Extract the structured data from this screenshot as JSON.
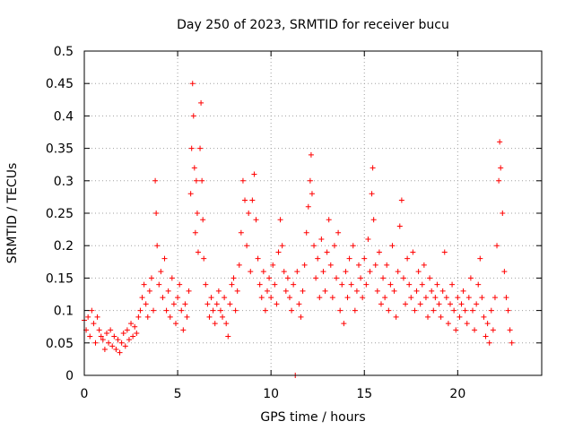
{
  "chart_data": {
    "type": "scatter",
    "title": "Day 250 of 2023, SRMTID for receiver bucu",
    "xlabel": "GPS time / hours",
    "ylabel": "SRMTID / TECUs",
    "xlim": [
      0,
      24.5
    ],
    "ylim": [
      0,
      0.5
    ],
    "x_ticks": [
      0,
      5,
      10,
      15,
      20
    ],
    "y_ticks": [
      0,
      0.05,
      0.1,
      0.15,
      0.2,
      0.25,
      0.3,
      0.35,
      0.4,
      0.45,
      0.5
    ],
    "x_tick_labels": [
      "0",
      "5",
      "10",
      "15",
      "20"
    ],
    "y_tick_labels": [
      "0",
      "0.05",
      "0.1",
      "0.15",
      "0.2",
      "0.25",
      "0.3",
      "0.35",
      "0.4",
      "0.45",
      "0.5"
    ],
    "grid": true,
    "marker": "+",
    "color": "#ff0000",
    "series": [
      {
        "name": "SRMTID",
        "points": [
          [
            0.0,
            0.085
          ],
          [
            0.1,
            0.07
          ],
          [
            0.2,
            0.09
          ],
          [
            0.3,
            0.06
          ],
          [
            0.4,
            0.1
          ],
          [
            0.5,
            0.08
          ],
          [
            0.6,
            0.05
          ],
          [
            0.7,
            0.09
          ],
          [
            0.8,
            0.07
          ],
          [
            0.9,
            0.06
          ],
          [
            1.0,
            0.055
          ],
          [
            1.1,
            0.04
          ],
          [
            1.2,
            0.065
          ],
          [
            1.3,
            0.05
          ],
          [
            1.4,
            0.07
          ],
          [
            1.5,
            0.045
          ],
          [
            1.6,
            0.06
          ],
          [
            1.7,
            0.04
          ],
          [
            1.8,
            0.055
          ],
          [
            1.9,
            0.035
          ],
          [
            2.0,
            0.05
          ],
          [
            2.1,
            0.065
          ],
          [
            2.2,
            0.045
          ],
          [
            2.3,
            0.07
          ],
          [
            2.4,
            0.055
          ],
          [
            2.5,
            0.08
          ],
          [
            2.6,
            0.06
          ],
          [
            2.7,
            0.075
          ],
          [
            2.8,
            0.065
          ],
          [
            2.9,
            0.09
          ],
          [
            3.0,
            0.1
          ],
          [
            3.1,
            0.12
          ],
          [
            3.2,
            0.14
          ],
          [
            3.3,
            0.11
          ],
          [
            3.4,
            0.09
          ],
          [
            3.5,
            0.13
          ],
          [
            3.6,
            0.15
          ],
          [
            3.7,
            0.1
          ],
          [
            3.8,
            0.3
          ],
          [
            3.85,
            0.25
          ],
          [
            3.9,
            0.2
          ],
          [
            4.0,
            0.14
          ],
          [
            4.1,
            0.16
          ],
          [
            4.2,
            0.12
          ],
          [
            4.3,
            0.18
          ],
          [
            4.4,
            0.1
          ],
          [
            4.5,
            0.13
          ],
          [
            4.6,
            0.09
          ],
          [
            4.7,
            0.15
          ],
          [
            4.8,
            0.11
          ],
          [
            4.9,
            0.08
          ],
          [
            5.0,
            0.12
          ],
          [
            5.1,
            0.14
          ],
          [
            5.2,
            0.1
          ],
          [
            5.3,
            0.07
          ],
          [
            5.4,
            0.11
          ],
          [
            5.5,
            0.09
          ],
          [
            5.6,
            0.13
          ],
          [
            5.7,
            0.28
          ],
          [
            5.75,
            0.35
          ],
          [
            5.8,
            0.45
          ],
          [
            5.85,
            0.4
          ],
          [
            5.9,
            0.32
          ],
          [
            5.95,
            0.22
          ],
          [
            6.0,
            0.3
          ],
          [
            6.05,
            0.25
          ],
          [
            6.1,
            0.19
          ],
          [
            6.2,
            0.35
          ],
          [
            6.25,
            0.42
          ],
          [
            6.3,
            0.3
          ],
          [
            6.35,
            0.24
          ],
          [
            6.4,
            0.18
          ],
          [
            6.5,
            0.14
          ],
          [
            6.6,
            0.11
          ],
          [
            6.7,
            0.09
          ],
          [
            6.8,
            0.12
          ],
          [
            6.9,
            0.1
          ],
          [
            7.0,
            0.08
          ],
          [
            7.1,
            0.11
          ],
          [
            7.2,
            0.13
          ],
          [
            7.3,
            0.1
          ],
          [
            7.4,
            0.09
          ],
          [
            7.5,
            0.12
          ],
          [
            7.6,
            0.08
          ],
          [
            7.7,
            0.06
          ],
          [
            7.8,
            0.11
          ],
          [
            7.9,
            0.14
          ],
          [
            8.0,
            0.15
          ],
          [
            8.1,
            0.1
          ],
          [
            8.2,
            0.13
          ],
          [
            8.3,
            0.17
          ],
          [
            8.4,
            0.22
          ],
          [
            8.5,
            0.3
          ],
          [
            8.6,
            0.27
          ],
          [
            8.7,
            0.2
          ],
          [
            8.8,
            0.25
          ],
          [
            8.9,
            0.16
          ],
          [
            9.0,
            0.27
          ],
          [
            9.1,
            0.31
          ],
          [
            9.2,
            0.24
          ],
          [
            9.3,
            0.18
          ],
          [
            9.4,
            0.14
          ],
          [
            9.5,
            0.12
          ],
          [
            9.6,
            0.16
          ],
          [
            9.7,
            0.1
          ],
          [
            9.8,
            0.13
          ],
          [
            9.9,
            0.15
          ],
          [
            10.0,
            0.12
          ],
          [
            10.1,
            0.17
          ],
          [
            10.2,
            0.14
          ],
          [
            10.3,
            0.11
          ],
          [
            10.4,
            0.19
          ],
          [
            10.5,
            0.24
          ],
          [
            10.6,
            0.2
          ],
          [
            10.7,
            0.16
          ],
          [
            10.8,
            0.13
          ],
          [
            10.9,
            0.15
          ],
          [
            11.0,
            0.12
          ],
          [
            11.1,
            0.1
          ],
          [
            11.2,
            0.14
          ],
          [
            11.3,
            0.0
          ],
          [
            11.4,
            0.16
          ],
          [
            11.5,
            0.11
          ],
          [
            11.6,
            0.09
          ],
          [
            11.7,
            0.13
          ],
          [
            11.8,
            0.17
          ],
          [
            11.9,
            0.22
          ],
          [
            12.0,
            0.26
          ],
          [
            12.1,
            0.3
          ],
          [
            12.15,
            0.34
          ],
          [
            12.2,
            0.28
          ],
          [
            12.3,
            0.2
          ],
          [
            12.4,
            0.15
          ],
          [
            12.5,
            0.18
          ],
          [
            12.6,
            0.12
          ],
          [
            12.7,
            0.21
          ],
          [
            12.8,
            0.16
          ],
          [
            12.9,
            0.13
          ],
          [
            13.0,
            0.19
          ],
          [
            13.1,
            0.24
          ],
          [
            13.2,
            0.17
          ],
          [
            13.3,
            0.12
          ],
          [
            13.4,
            0.2
          ],
          [
            13.5,
            0.15
          ],
          [
            13.6,
            0.22
          ],
          [
            13.7,
            0.1
          ],
          [
            13.8,
            0.14
          ],
          [
            13.9,
            0.08
          ],
          [
            14.0,
            0.16
          ],
          [
            14.1,
            0.12
          ],
          [
            14.2,
            0.18
          ],
          [
            14.3,
            0.14
          ],
          [
            14.4,
            0.2
          ],
          [
            14.5,
            0.1
          ],
          [
            14.6,
            0.13
          ],
          [
            14.7,
            0.17
          ],
          [
            14.8,
            0.15
          ],
          [
            14.9,
            0.12
          ],
          [
            15.0,
            0.18
          ],
          [
            15.1,
            0.14
          ],
          [
            15.2,
            0.21
          ],
          [
            15.3,
            0.16
          ],
          [
            15.4,
            0.28
          ],
          [
            15.45,
            0.32
          ],
          [
            15.5,
            0.24
          ],
          [
            15.6,
            0.17
          ],
          [
            15.7,
            0.13
          ],
          [
            15.8,
            0.19
          ],
          [
            15.9,
            0.11
          ],
          [
            16.0,
            0.15
          ],
          [
            16.1,
            0.12
          ],
          [
            16.2,
            0.17
          ],
          [
            16.3,
            0.1
          ],
          [
            16.4,
            0.14
          ],
          [
            16.5,
            0.2
          ],
          [
            16.6,
            0.13
          ],
          [
            16.7,
            0.09
          ],
          [
            16.8,
            0.16
          ],
          [
            16.9,
            0.23
          ],
          [
            17.0,
            0.27
          ],
          [
            17.1,
            0.15
          ],
          [
            17.2,
            0.11
          ],
          [
            17.3,
            0.18
          ],
          [
            17.4,
            0.14
          ],
          [
            17.5,
            0.12
          ],
          [
            17.6,
            0.19
          ],
          [
            17.7,
            0.1
          ],
          [
            17.8,
            0.13
          ],
          [
            17.9,
            0.16
          ],
          [
            18.0,
            0.11
          ],
          [
            18.1,
            0.14
          ],
          [
            18.2,
            0.17
          ],
          [
            18.3,
            0.12
          ],
          [
            18.4,
            0.09
          ],
          [
            18.5,
            0.15
          ],
          [
            18.6,
            0.13
          ],
          [
            18.7,
            0.1
          ],
          [
            18.8,
            0.12
          ],
          [
            18.9,
            0.14
          ],
          [
            19.0,
            0.11
          ],
          [
            19.1,
            0.09
          ],
          [
            19.2,
            0.13
          ],
          [
            19.3,
            0.19
          ],
          [
            19.4,
            0.12
          ],
          [
            19.5,
            0.08
          ],
          [
            19.6,
            0.11
          ],
          [
            19.7,
            0.14
          ],
          [
            19.8,
            0.1
          ],
          [
            19.9,
            0.07
          ],
          [
            20.0,
            0.12
          ],
          [
            20.1,
            0.09
          ],
          [
            20.2,
            0.11
          ],
          [
            20.3,
            0.13
          ],
          [
            20.4,
            0.1
          ],
          [
            20.5,
            0.08
          ],
          [
            20.6,
            0.12
          ],
          [
            20.7,
            0.15
          ],
          [
            20.8,
            0.1
          ],
          [
            20.9,
            0.07
          ],
          [
            21.0,
            0.11
          ],
          [
            21.1,
            0.14
          ],
          [
            21.2,
            0.18
          ],
          [
            21.3,
            0.12
          ],
          [
            21.4,
            0.09
          ],
          [
            21.5,
            0.06
          ],
          [
            21.6,
            0.08
          ],
          [
            21.7,
            0.05
          ],
          [
            21.8,
            0.1
          ],
          [
            21.9,
            0.07
          ],
          [
            22.0,
            0.12
          ],
          [
            22.1,
            0.2
          ],
          [
            22.2,
            0.3
          ],
          [
            22.25,
            0.36
          ],
          [
            22.3,
            0.32
          ],
          [
            22.4,
            0.25
          ],
          [
            22.5,
            0.16
          ],
          [
            22.6,
            0.12
          ],
          [
            22.7,
            0.1
          ],
          [
            22.8,
            0.07
          ],
          [
            22.9,
            0.05
          ]
        ]
      }
    ]
  }
}
